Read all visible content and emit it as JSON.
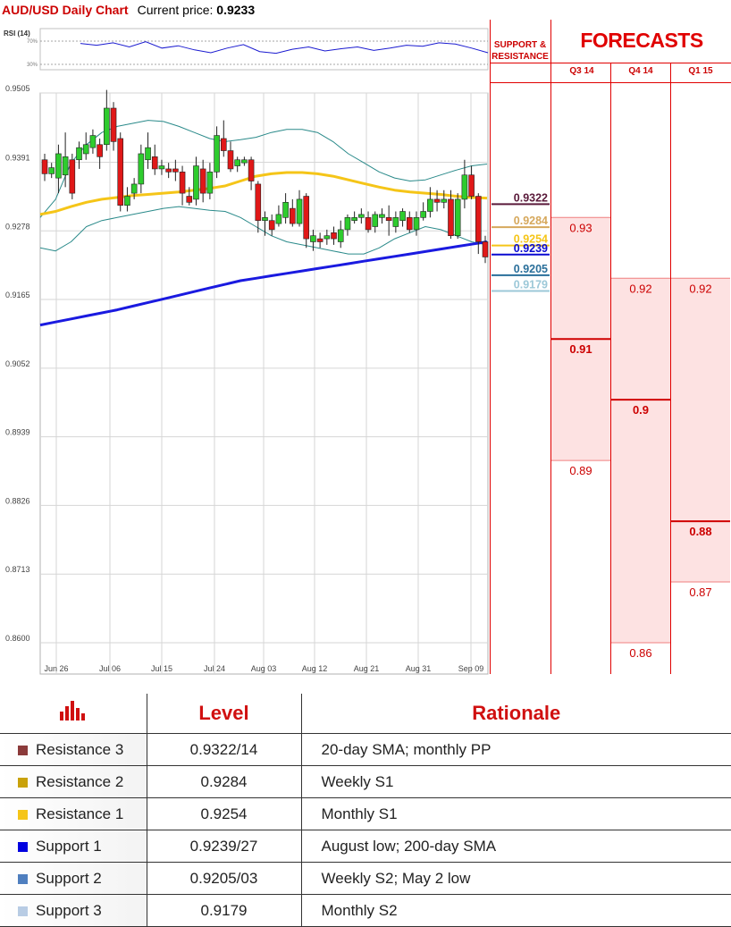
{
  "header": {
    "chart_label": "AUD/USD Daily Chart",
    "price_label": "Current price:",
    "price_value": "0.9233"
  },
  "rsi_label": "RSI (14)",
  "rsi_levels": [
    "70%",
    "30%"
  ],
  "sr_panel": {
    "title_line1": "SUPPORT &",
    "title_line2": "RESISTANCE",
    "levels": [
      {
        "value": "0.9322",
        "color": "#5a1a3a"
      },
      {
        "value": "0.9284",
        "color": "#d6a85c"
      },
      {
        "value": "0.9254",
        "color": "#f5c518"
      },
      {
        "value": "0.9239",
        "color": "#0a0ad0"
      },
      {
        "value": "0.9205",
        "color": "#2a6f9a"
      },
      {
        "value": "0.9179",
        "color": "#9cc8d8"
      }
    ]
  },
  "forecasts": {
    "title": "FORECASTS",
    "quarters": [
      {
        "label": "Q3 14",
        "values": [
          {
            "v": "0.93",
            "bold": false,
            "p": 0.93
          },
          {
            "v": "0.91",
            "bold": true,
            "p": 0.91
          },
          {
            "v": "0.89",
            "bold": false,
            "p": 0.89
          }
        ]
      },
      {
        "label": "Q4 14",
        "values": [
          {
            "v": "0.92",
            "bold": false,
            "p": 0.92
          },
          {
            "v": "0.9",
            "bold": true,
            "p": 0.9
          },
          {
            "v": "0.86",
            "bold": false,
            "p": 0.86
          }
        ]
      },
      {
        "label": "Q1 15",
        "values": [
          {
            "v": "0.92",
            "bold": false,
            "p": 0.92
          },
          {
            "v": "0.88",
            "bold": true,
            "p": 0.88
          },
          {
            "v": "0.87",
            "bold": false,
            "p": 0.87
          }
        ]
      }
    ]
  },
  "chart_data": {
    "type": "candlestick",
    "title": "AUD/USD Daily Chart",
    "ylim": [
      0.96,
      0.9505
    ],
    "y_ticks": [
      "0.9505",
      "0.9391",
      "0.9278",
      "0.9165",
      "0.9052",
      "0.8939",
      "0.8826",
      "0.8713",
      "0.8600"
    ],
    "x_ticks": [
      "Jun 26",
      "Jul 06",
      "Jul 15",
      "Jul 24",
      "Aug 03",
      "Aug 12",
      "Aug 21",
      "Aug 31",
      "Sep 09"
    ],
    "candles": [
      [
        0.9395,
        0.9372,
        0.9405,
        0.936
      ],
      [
        0.9372,
        0.9382,
        0.939,
        0.9365
      ],
      [
        0.9365,
        0.9405,
        0.942,
        0.934
      ],
      [
        0.937,
        0.94,
        0.944,
        0.935
      ],
      [
        0.9395,
        0.934,
        0.9405,
        0.933
      ],
      [
        0.9395,
        0.9415,
        0.9425,
        0.938
      ],
      [
        0.9405,
        0.942,
        0.944,
        0.9395
      ],
      [
        0.9415,
        0.9435,
        0.9445,
        0.9405
      ],
      [
        0.942,
        0.94,
        0.943,
        0.938
      ],
      [
        0.942,
        0.948,
        0.951,
        0.941
      ],
      [
        0.948,
        0.9425,
        0.949,
        0.941
      ],
      [
        0.943,
        0.932,
        0.944,
        0.931
      ],
      [
        0.932,
        0.9335,
        0.935,
        0.931
      ],
      [
        0.934,
        0.9355,
        0.9365,
        0.933
      ],
      [
        0.9355,
        0.9405,
        0.942,
        0.934
      ],
      [
        0.9395,
        0.9415,
        0.944,
        0.938
      ],
      [
        0.94,
        0.938,
        0.942,
        0.937
      ],
      [
        0.938,
        0.9385,
        0.9395,
        0.937
      ],
      [
        0.938,
        0.9375,
        0.939,
        0.9365
      ],
      [
        0.938,
        0.9375,
        0.9395,
        0.936
      ],
      [
        0.9375,
        0.934,
        0.9385,
        0.932
      ],
      [
        0.9335,
        0.9325,
        0.935,
        0.932
      ],
      [
        0.933,
        0.9385,
        0.94,
        0.932
      ],
      [
        0.938,
        0.934,
        0.9395,
        0.9325
      ],
      [
        0.934,
        0.9375,
        0.939,
        0.933
      ],
      [
        0.9375,
        0.9435,
        0.945,
        0.9365
      ],
      [
        0.943,
        0.941,
        0.946,
        0.94
      ],
      [
        0.941,
        0.938,
        0.9425,
        0.9375
      ],
      [
        0.9385,
        0.9395,
        0.94,
        0.9375
      ],
      [
        0.939,
        0.9395,
        0.94,
        0.9385
      ],
      [
        0.9395,
        0.936,
        0.94,
        0.9345
      ],
      [
        0.9355,
        0.9295,
        0.936,
        0.9275
      ],
      [
        0.9295,
        0.93,
        0.931,
        0.927
      ],
      [
        0.9295,
        0.928,
        0.9305,
        0.927
      ],
      [
        0.929,
        0.9305,
        0.932,
        0.9285
      ],
      [
        0.93,
        0.9325,
        0.934,
        0.929
      ],
      [
        0.9315,
        0.929,
        0.933,
        0.9285
      ],
      [
        0.929,
        0.933,
        0.9345,
        0.9285
      ],
      [
        0.9335,
        0.9265,
        0.934,
        0.925
      ],
      [
        0.926,
        0.927,
        0.928,
        0.9245
      ],
      [
        0.9265,
        0.926,
        0.9275,
        0.925
      ],
      [
        0.9265,
        0.927,
        0.928,
        0.9255
      ],
      [
        0.9275,
        0.9265,
        0.9285,
        0.9255
      ],
      [
        0.926,
        0.928,
        0.9295,
        0.925
      ],
      [
        0.928,
        0.93,
        0.9305,
        0.927
      ],
      [
        0.9295,
        0.93,
        0.931,
        0.929
      ],
      [
        0.93,
        0.9305,
        0.9315,
        0.929
      ],
      [
        0.93,
        0.928,
        0.931,
        0.9275
      ],
      [
        0.9285,
        0.9305,
        0.931,
        0.9275
      ],
      [
        0.93,
        0.9305,
        0.9315,
        0.929
      ],
      [
        0.93,
        0.9295,
        0.932,
        0.927
      ],
      [
        0.9285,
        0.93,
        0.931,
        0.9275
      ],
      [
        0.9295,
        0.931,
        0.9315,
        0.9285
      ],
      [
        0.93,
        0.928,
        0.931,
        0.9275
      ],
      [
        0.928,
        0.93,
        0.931,
        0.927
      ],
      [
        0.93,
        0.931,
        0.9325,
        0.9295
      ],
      [
        0.931,
        0.933,
        0.935,
        0.93
      ],
      [
        0.933,
        0.9325,
        0.9345,
        0.931
      ],
      [
        0.9325,
        0.933,
        0.9345,
        0.9315
      ],
      [
        0.933,
        0.927,
        0.9345,
        0.9265
      ],
      [
        0.927,
        0.933,
        0.934,
        0.9265
      ],
      [
        0.933,
        0.937,
        0.9395,
        0.9315
      ],
      [
        0.937,
        0.9335,
        0.9385,
        0.933
      ],
      [
        0.9335,
        0.926,
        0.934,
        0.924
      ],
      [
        0.926,
        0.9235,
        0.927,
        0.9225
      ]
    ],
    "sma_yellow": [
      0.9305,
      0.931,
      0.9318,
      0.9325,
      0.933,
      0.9333,
      0.9336,
      0.9338,
      0.934,
      0.9342,
      0.9345,
      0.9348,
      0.9352,
      0.936,
      0.9368,
      0.9372,
      0.9374,
      0.9374,
      0.9372,
      0.9368,
      0.9362,
      0.9356,
      0.935,
      0.9345,
      0.9342,
      0.934,
      0.9338,
      0.9335,
      0.9333,
      0.9332
    ],
    "sma_blue": [
      0.9123,
      0.9128,
      0.9133,
      0.9138,
      0.9143,
      0.9148,
      0.9154,
      0.916,
      0.9166,
      0.9172,
      0.9178,
      0.9184,
      0.919,
      0.9196,
      0.92,
      0.9204,
      0.9208,
      0.9212,
      0.9216,
      0.922,
      0.9224,
      0.9228,
      0.9232,
      0.9236,
      0.924,
      0.9244,
      0.9248,
      0.9252,
      0.9256,
      0.926
    ],
    "bb_upper": [
      0.93,
      0.933,
      0.939,
      0.942,
      0.944,
      0.945,
      0.9455,
      0.946,
      0.9458,
      0.945,
      0.944,
      0.943,
      0.9425,
      0.9428,
      0.9432,
      0.944,
      0.9445,
      0.9445,
      0.944,
      0.9425,
      0.9405,
      0.939,
      0.9375,
      0.9365,
      0.936,
      0.9362,
      0.937,
      0.9378,
      0.9385,
      0.9388
    ],
    "bb_lower": [
      0.925,
      0.9245,
      0.926,
      0.9285,
      0.9295,
      0.93,
      0.9305,
      0.931,
      0.9315,
      0.9318,
      0.9315,
      0.9312,
      0.931,
      0.93,
      0.9285,
      0.927,
      0.926,
      0.9255,
      0.925,
      0.9245,
      0.924,
      0.924,
      0.925,
      0.9265,
      0.9275,
      0.9285,
      0.928,
      0.927,
      0.926,
      0.9255
    ],
    "rsi": [
      66,
      63,
      67,
      60,
      69,
      58,
      62,
      55,
      50,
      58,
      64,
      52,
      49,
      56,
      60,
      53,
      57,
      60,
      54,
      58,
      63,
      61,
      67,
      65,
      58,
      50
    ]
  },
  "table": {
    "headers": [
      "",
      "Level",
      "Rationale"
    ],
    "rows": [
      {
        "name": "Resistance 3",
        "level": "0.9322/14",
        "rationale": "20-day SMA; monthly PP",
        "color": "#8b3a3a"
      },
      {
        "name": "Resistance 2",
        "level": "0.9284",
        "rationale": "Weekly S1",
        "color": "#c9a20a"
      },
      {
        "name": "Resistance 1",
        "level": "0.9254",
        "rationale": "Monthly S1",
        "color": "#f5c518"
      },
      {
        "name": "Support 1",
        "level": "0.9239/27",
        "rationale": "August low; 200-day SMA",
        "color": "#0000e0"
      },
      {
        "name": "Support 2",
        "level": "0.9205/03",
        "rationale": "Weekly S2; May 2 low",
        "color": "#4f7fbf"
      },
      {
        "name": "Support 3",
        "level": "0.9179",
        "rationale": "Monthly S2",
        "color": "#b8cce4"
      }
    ]
  }
}
